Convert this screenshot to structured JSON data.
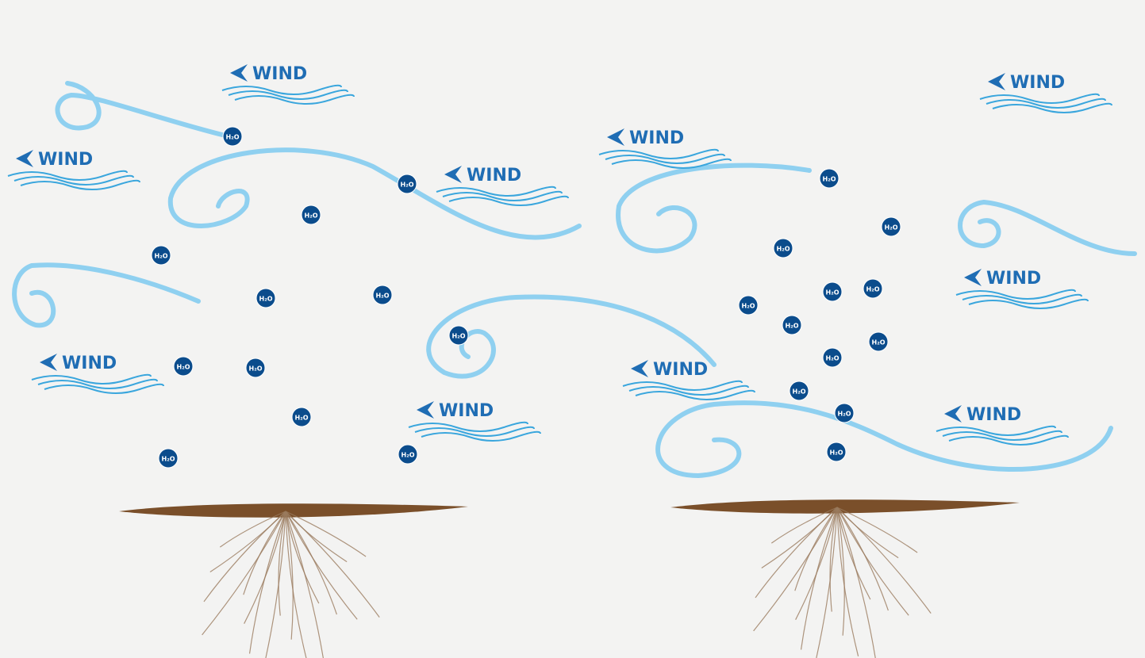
{
  "wind_labels": [
    "WIND",
    "WIND",
    "WIND",
    "WIND",
    "WIND",
    "WIND",
    "WIND",
    "WIND",
    "WIND",
    "WIND"
  ],
  "water_labels": [
    "H₂O",
    "H₂O",
    "H₂O",
    "H₂O",
    "H₂O",
    "H₂O",
    "H₂O",
    "H₂O",
    "H₂O",
    "H₂O",
    "H₂O",
    "H₂O",
    "H₂O",
    "H₂O",
    "H₂O",
    "H₂O",
    "H₂O",
    "H₂O",
    "H₂O",
    "H₂O",
    "H₂O",
    "H₂O",
    "H₂O",
    "H₂O"
  ]
}
